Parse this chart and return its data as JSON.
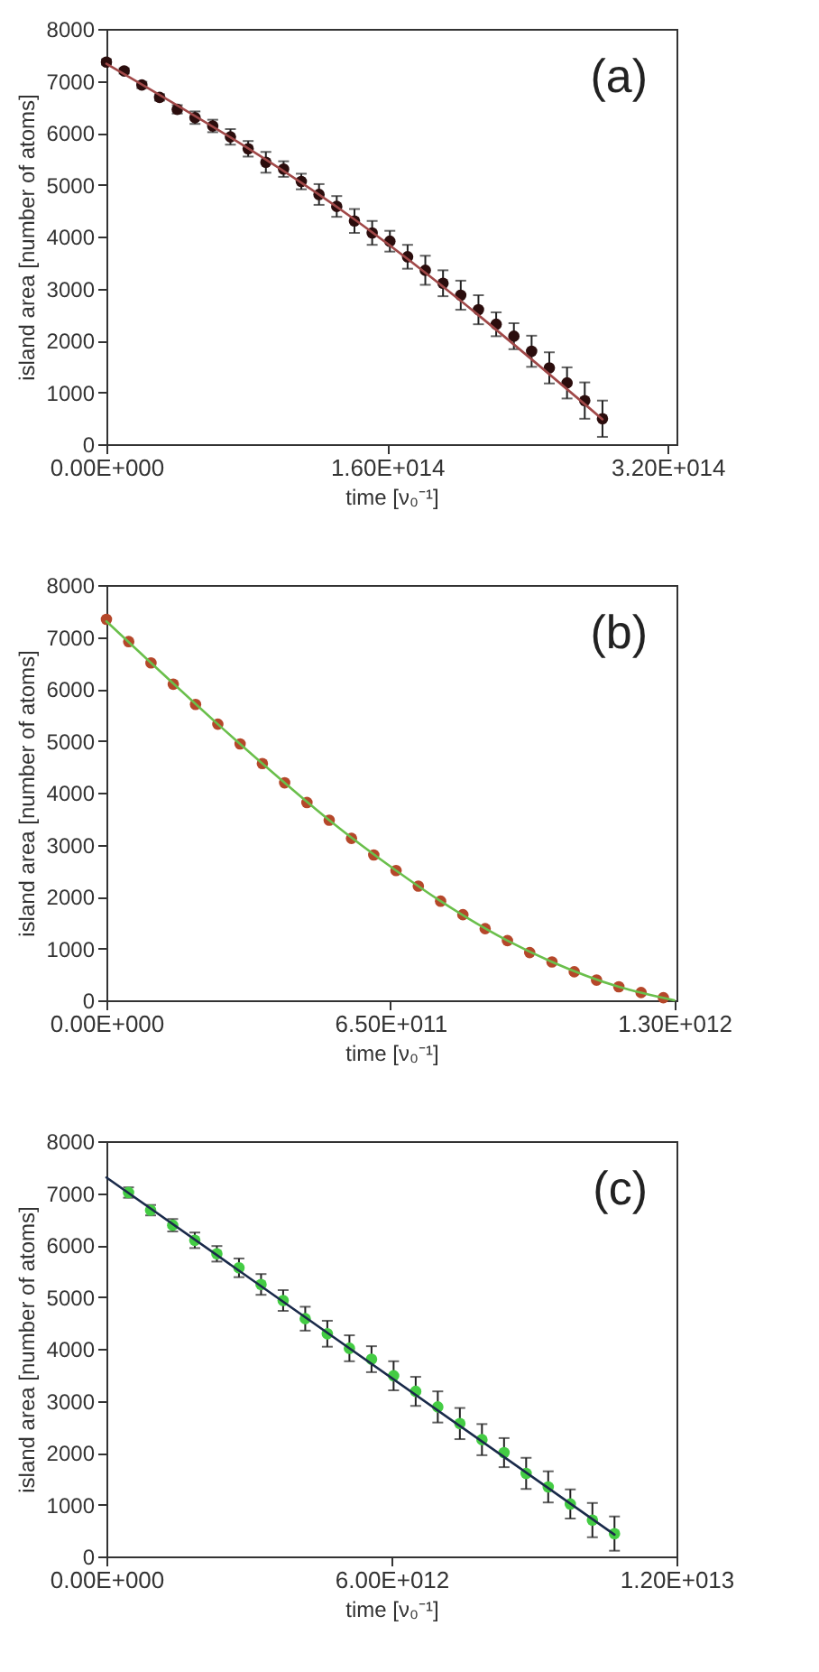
{
  "chart_data": [
    {
      "type": "scatter",
      "annotations": [
        "(a)"
      ],
      "xlabel": "time [ν₀⁻¹]",
      "ylabel": "island area [number of atoms]",
      "xlim": [
        0,
        325000000000000.0
      ],
      "ylim": [
        0,
        8000
      ],
      "xticks": [
        {
          "value": 0,
          "label": "0.00E+000"
        },
        {
          "value": 160000000000000.0,
          "label": "1.60E+014"
        },
        {
          "value": 320000000000000.0,
          "label": "3.20E+014"
        }
      ],
      "yticks": [
        0,
        1000,
        2000,
        3000,
        4000,
        5000,
        6000,
        7000,
        8000
      ],
      "grid": false,
      "marker": "circle",
      "series": [
        {
          "color": "#2b0d0d",
          "x": [
            0,
            10100000000000.0,
            20200000000000.0,
            30300000000000.0,
            40400000000000.0,
            50500000000000.0,
            60600000000000.0,
            70700000000000.0,
            80800000000000.0,
            90900000000000.0,
            101000000000000.0,
            111100000000000.0,
            121200000000000.0,
            131300000000000.0,
            141400000000000.0,
            151500000000000.0,
            161600000000000.0,
            171700000000000.0,
            181800000000000.0,
            191900000000000.0,
            202000000000000.0,
            212100000000000.0,
            222200000000000.0,
            232300000000000.0,
            242400000000000.0,
            252500000000000.0,
            262600000000000.0,
            272700000000000.0,
            282800000000000.0
          ],
          "values": [
            7360,
            7190,
            6920,
            6680,
            6450,
            6290,
            6130,
            5920,
            5690,
            5430,
            5300,
            5060,
            4810,
            4580,
            4300,
            4070,
            3910,
            3610,
            3350,
            3100,
            2870,
            2590,
            2310,
            2080,
            1790,
            1470,
            1180,
            840,
            490
          ],
          "errors": [
            50,
            50,
            60,
            60,
            80,
            120,
            120,
            150,
            150,
            200,
            150,
            150,
            200,
            200,
            230,
            230,
            200,
            230,
            280,
            250,
            280,
            280,
            230,
            250,
            300,
            300,
            300,
            350,
            350
          ]
        },
        {
          "type": "line",
          "color": "#a04848",
          "marker": "none",
          "x": [
            0,
            141400000000000.0,
            282800000000000.0
          ],
          "values": [
            7330,
            4330,
            480
          ]
        }
      ]
    },
    {
      "type": "scatter",
      "annotations": [
        "(b)"
      ],
      "xlabel": "time [ν₀⁻¹]",
      "ylabel": "island area [number of atoms]",
      "xlim": [
        0,
        1305000000000.0
      ],
      "ylim": [
        0,
        8000
      ],
      "xticks": [
        {
          "value": 0,
          "label": "0.00E+000"
        },
        {
          "value": 650000000000.0,
          "label": "6.50E+011"
        },
        {
          "value": 1300000000000.0,
          "label": "1.30E+012"
        }
      ],
      "yticks": [
        0,
        1000,
        2000,
        3000,
        4000,
        5000,
        6000,
        7000,
        8000
      ],
      "grid": false,
      "marker": "circle",
      "series": [
        {
          "color": "#b5472a",
          "x": [
            0,
            51000000000.0,
            102000000000.0,
            153000000000.0,
            204000000000.0,
            255000000000.0,
            306000000000.0,
            357000000000.0,
            408000000000.0,
            459000000000.0,
            510000000000.0,
            561000000000.0,
            612000000000.0,
            663000000000.0,
            714000000000.0,
            765000000000.0,
            816000000000.0,
            867000000000.0,
            918000000000.0,
            969000000000.0,
            1020000000000.0,
            1071000000000.0,
            1122000000000.0,
            1173000000000.0,
            1224000000000.0,
            1275000000000.0
          ],
          "values": [
            7340,
            6910,
            6500,
            6090,
            5700,
            5320,
            4940,
            4560,
            4190,
            3810,
            3470,
            3120,
            2800,
            2500,
            2200,
            1910,
            1650,
            1380,
            1150,
            920,
            740,
            550,
            390,
            260,
            150,
            50
          ]
        },
        {
          "type": "line",
          "color": "#6abf4b",
          "marker": "none",
          "x": [
            0,
            102000000000.0,
            255000000000.0,
            357000000000.0,
            510000000000.0,
            663000000000.0,
            765000000000.0,
            918000000000.0,
            1020000000000.0,
            1173000000000.0,
            1300000000000.0
          ],
          "values": [
            7300,
            6500,
            5320,
            4560,
            3470,
            2500,
            1910,
            1150,
            740,
            260,
            0
          ]
        }
      ]
    },
    {
      "type": "scatter",
      "annotations": [
        "(c)"
      ],
      "xlabel": "time [ν₀⁻¹]",
      "ylabel": "island area [number of atoms]",
      "xlim": [
        0,
        12000000000000.0
      ],
      "ylim": [
        0,
        8000
      ],
      "xticks": [
        {
          "value": 0,
          "label": "0.00E+000"
        },
        {
          "value": 6000000000000.0,
          "label": "6.00E+012"
        },
        {
          "value": 12000000000000.0,
          "label": "1.20E+013"
        }
      ],
      "yticks": [
        0,
        1000,
        2000,
        3000,
        4000,
        5000,
        6000,
        7000,
        8000
      ],
      "grid": false,
      "marker": "circle",
      "series": [
        {
          "color": "#44cc44",
          "x": [
            465000000000.0,
            930000000000.0,
            1395000000000.0,
            1860000000000.0,
            2325000000000.0,
            2790000000000.0,
            3255000000000.0,
            3720000000000.0,
            4185000000000.0,
            4650000000000.0,
            5115000000000.0,
            5580000000000.0,
            6045000000000.0,
            6510000000000.0,
            6975000000000.0,
            7440000000000.0,
            7905000000000.0,
            8370000000000.0,
            8835000000000.0,
            9300000000000.0,
            9765000000000.0,
            10230000000000.0,
            10695000000000.0
          ],
          "values": [
            7010,
            6670,
            6380,
            6090,
            5830,
            5560,
            5240,
            4930,
            4580,
            4290,
            4010,
            3800,
            3480,
            3180,
            2880,
            2560,
            2250,
            2000,
            1600,
            1340,
            1010,
            700,
            440
          ],
          "errors": [
            100,
            100,
            120,
            150,
            150,
            180,
            200,
            200,
            230,
            250,
            250,
            250,
            280,
            280,
            300,
            300,
            300,
            280,
            300,
            300,
            280,
            330,
            330
          ]
        },
        {
          "type": "line",
          "color": "#1a2a4a",
          "marker": "none",
          "x": [
            0,
            10695000000000.0
          ],
          "values": [
            7300,
            420
          ]
        }
      ]
    }
  ]
}
